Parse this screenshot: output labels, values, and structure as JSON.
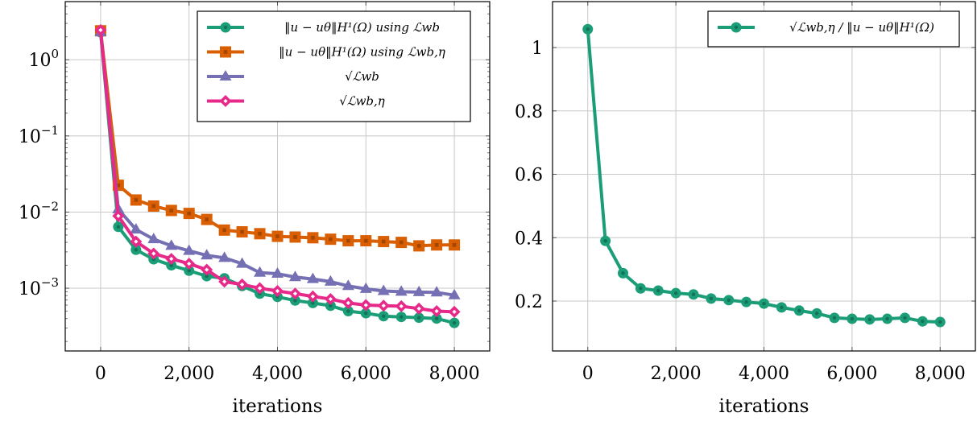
{
  "chart_data": [
    {
      "type": "line",
      "xlabel": "iterations",
      "ylabel": "",
      "yscale": "log",
      "xlim": [
        -800,
        8800
      ],
      "ylim": [
        0.00015,
        5.8
      ],
      "grid": true,
      "legend_position": "top-right",
      "x_ticks": [
        0,
        2000,
        4000,
        6000,
        8000
      ],
      "x_tick_labels": [
        "0",
        "2,000",
        "4,000",
        "6,000",
        "8,000"
      ],
      "y_ticks": [
        1,
        0.1,
        0.01,
        0.001
      ],
      "y_tick_labels": [
        {
          "base": "10",
          "exp": "0"
        },
        {
          "base": "10",
          "exp": "−1"
        },
        {
          "base": "10",
          "exp": "−2"
        },
        {
          "base": "10",
          "exp": "−3"
        }
      ],
      "x": [
        0,
        400,
        800,
        1200,
        1600,
        2000,
        2400,
        2800,
        3200,
        3600,
        4000,
        4400,
        4800,
        5200,
        5600,
        6000,
        6400,
        6800,
        7200,
        7600,
        8000
      ],
      "series": [
        {
          "name": "‖u − uθ‖H¹(Ω) using ℒwb",
          "color": "#1b9e77",
          "marker": "circle",
          "values": [
            2.3,
            0.0064,
            0.0032,
            0.0024,
            0.002,
            0.0017,
            0.00144,
            0.00135,
            0.00107,
            0.00085,
            0.00077,
            0.00069,
            0.00064,
            0.00059,
            0.0005,
            0.00047,
            0.00043,
            0.00042,
            0.00041,
            0.0004,
            0.00035
          ]
        },
        {
          "name": "‖u − uθ‖H¹(Ω) using ℒwb,η",
          "color": "#d95f02",
          "marker": "square",
          "values": [
            2.4,
            0.0225,
            0.0144,
            0.012,
            0.0105,
            0.0096,
            0.008,
            0.0058,
            0.0055,
            0.0052,
            0.0048,
            0.0047,
            0.0046,
            0.0044,
            0.0042,
            0.0042,
            0.0041,
            0.004,
            0.0036,
            0.0037,
            0.0037
          ]
        },
        {
          "name": "√ℒwb",
          "color": "#7570b3",
          "marker": "triangle",
          "values": [
            2.3,
            0.0109,
            0.0059,
            0.0044,
            0.0036,
            0.0031,
            0.0027,
            0.0025,
            0.0021,
            0.0016,
            0.00155,
            0.0014,
            0.00132,
            0.00122,
            0.00107,
            0.00098,
            0.00092,
            0.0009,
            0.00089,
            0.00088,
            0.00081
          ]
        },
        {
          "name": "√ℒwb,η",
          "color": "#e7298a",
          "marker": "diamond",
          "values": [
            2.45,
            0.0089,
            0.0041,
            0.00285,
            0.00243,
            0.0021,
            0.00175,
            0.00122,
            0.00112,
            0.001,
            0.00092,
            0.00085,
            0.00078,
            0.00072,
            0.00064,
            0.0006,
            0.00059,
            0.00058,
            0.00054,
            0.0005,
            0.00049
          ]
        }
      ]
    },
    {
      "type": "line",
      "xlabel": "iterations",
      "ylabel": "",
      "xlim": [
        -800,
        8800
      ],
      "ylim": [
        0.0425,
        1.145
      ],
      "grid": true,
      "legend_position": "top-right",
      "x_ticks": [
        0,
        2000,
        4000,
        6000,
        8000
      ],
      "x_tick_labels": [
        "0",
        "2,000",
        "4,000",
        "6,000",
        "8,000"
      ],
      "y_ticks": [
        0.2,
        0.4,
        0.6,
        0.8,
        1
      ],
      "y_tick_labels": [
        "0.2",
        "0.4",
        "0.6",
        "0.8",
        "1"
      ],
      "x": [
        0,
        400,
        800,
        1200,
        1600,
        2000,
        2400,
        2800,
        3200,
        3600,
        4000,
        4400,
        4800,
        5200,
        5600,
        6000,
        6400,
        6800,
        7200,
        7600,
        8000
      ],
      "series": [
        {
          "name": "√ℒwb,η / ‖u − uθ‖H¹(Ω)",
          "color": "#1b9e77",
          "marker": "circle",
          "values": [
            1.058,
            0.39,
            0.288,
            0.24,
            0.233,
            0.225,
            0.221,
            0.208,
            0.203,
            0.197,
            0.192,
            0.18,
            0.17,
            0.161,
            0.147,
            0.144,
            0.142,
            0.144,
            0.147,
            0.136,
            0.134
          ]
        }
      ]
    }
  ]
}
